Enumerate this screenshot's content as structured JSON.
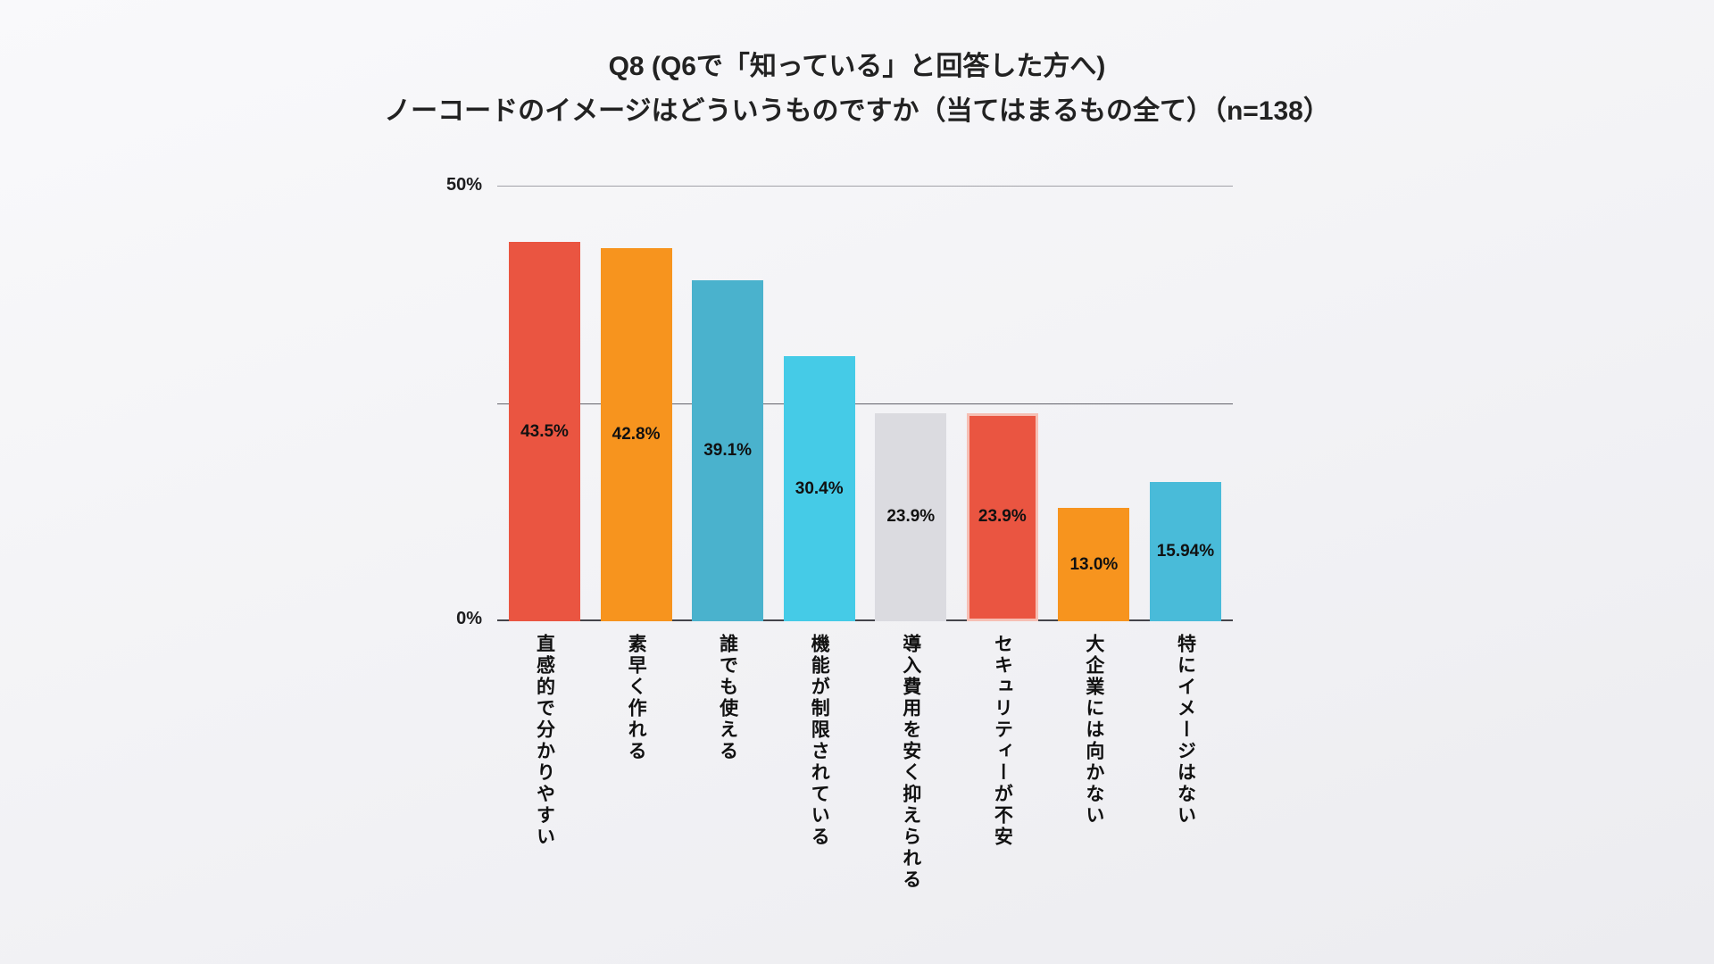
{
  "title": {
    "line1": "Q8 (Q6で「知っている」と回答した方へ)",
    "line2": "ノーコードのイメージはどういうものですか（当てはまるもの全て）（n=138）"
  },
  "axis": {
    "y_top": "50%",
    "y_bottom": "0%"
  },
  "chart_data": {
    "type": "bar",
    "title": "Q8 (Q6で「知っている」と回答した方へ) ノーコードのイメージはどういうものですか（当てはまるもの全て）（n=138）",
    "n": 138,
    "categories": [
      "直感的で分かりやすい",
      "素早く作れる",
      "誰でも使える",
      "機能が制限されている",
      "導入費用を安く抑えられる",
      "セキュリティーが不安",
      "大企業には向かない",
      "特にイメージはない"
    ],
    "values": [
      43.5,
      42.8,
      39.1,
      30.4,
      23.9,
      23.9,
      13.0,
      15.94
    ],
    "value_labels": [
      "43.5%",
      "42.8%",
      "39.1%",
      "30.4%",
      "23.9%",
      "23.9%",
      "13.0%",
      "15.94%"
    ],
    "colors": [
      "#EA5541",
      "#F7941E",
      "#4AB2CD",
      "#45CBE7",
      "#DBDBE0",
      "#EA5541",
      "#F7941E",
      "#49BBD9"
    ],
    "highlight": {
      "index": 5,
      "color": "#F6BFB4"
    },
    "xlabel": "",
    "ylabel": "",
    "ylim": [
      0,
      50
    ],
    "gridline_values": [
      0,
      25,
      50
    ],
    "grid": "horizontal",
    "legend": "none",
    "value_label_position": "centered-inside-bar",
    "category_label_orientation": "vertical"
  }
}
